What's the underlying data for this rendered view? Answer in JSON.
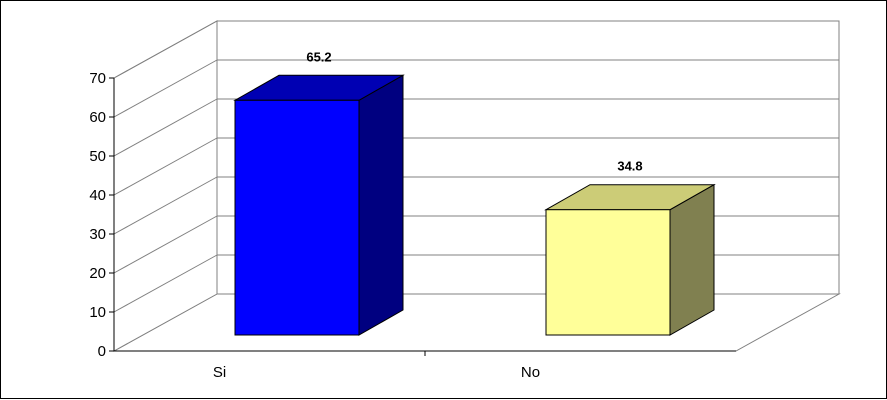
{
  "chart_data": {
    "type": "bar",
    "categories": [
      "Si",
      "No"
    ],
    "values": [
      65.2,
      34.8
    ],
    "data_labels": [
      "65.2",
      "34.8"
    ],
    "ylim": [
      0,
      70
    ],
    "yticks": [
      "0",
      "10",
      "20",
      "30",
      "40",
      "50",
      "60",
      "70"
    ],
    "grid": true,
    "legend": "none",
    "three_d": true,
    "colors": [
      {
        "front": "#0000ff",
        "top": "#0000b3",
        "side": "#000080"
      },
      {
        "front": "#ffff99",
        "top": "#cccc77",
        "side": "#808050"
      }
    ]
  }
}
